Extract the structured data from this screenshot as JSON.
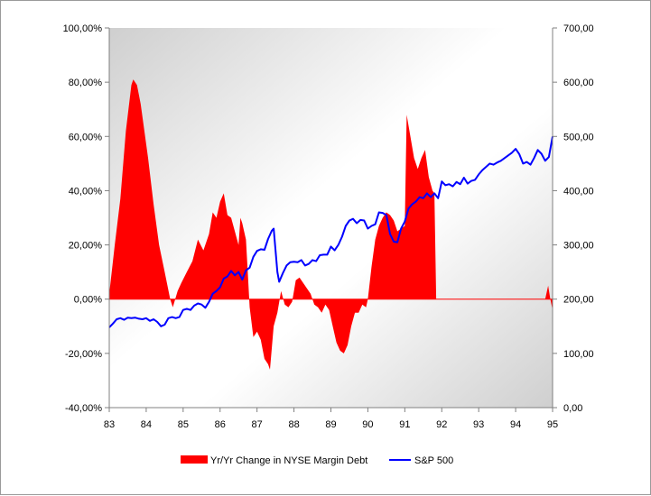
{
  "chart_data": {
    "type": "area+line",
    "title": "",
    "x_axis": {
      "labels": [
        "83",
        "84",
        "85",
        "86",
        "87",
        "88",
        "89",
        "90",
        "91",
        "92",
        "93",
        "94",
        "95"
      ],
      "range": [
        83,
        95
      ]
    },
    "y_left": {
      "range": [
        -40,
        100
      ],
      "ticks": [
        -40,
        -20,
        0,
        20,
        40,
        60,
        80,
        100
      ],
      "tick_labels": [
        "-40,00%",
        "-20,00%",
        "0,00%",
        "20,00%",
        "40,00%",
        "60,00%",
        "80,00%",
        "100,00%"
      ]
    },
    "y_right": {
      "range": [
        0,
        700
      ],
      "ticks": [
        0,
        100,
        200,
        300,
        400,
        500,
        600,
        700
      ],
      "tick_labels": [
        "0,00",
        "100,00",
        "200,00",
        "300,00",
        "400,00",
        "500,00",
        "600,00",
        "700,00"
      ]
    },
    "legend": {
      "position": "bottom"
    },
    "series": [
      {
        "name": "Yr/Yr Change in NYSE Margin Debt",
        "type": "area",
        "axis": "left",
        "color": "#ff0000",
        "points": [
          [
            83.0,
            2
          ],
          [
            83.15,
            20
          ],
          [
            83.3,
            37
          ],
          [
            83.45,
            62
          ],
          [
            83.6,
            79
          ],
          [
            83.65,
            81
          ],
          [
            83.75,
            79
          ],
          [
            83.85,
            72
          ],
          [
            83.95,
            62
          ],
          [
            84.05,
            52
          ],
          [
            84.2,
            35
          ],
          [
            84.35,
            20
          ],
          [
            84.5,
            10
          ],
          [
            84.65,
            0
          ],
          [
            84.72,
            -3
          ],
          [
            84.85,
            3
          ],
          [
            84.95,
            6
          ],
          [
            85.1,
            10
          ],
          [
            85.25,
            14
          ],
          [
            85.4,
            22
          ],
          [
            85.55,
            18
          ],
          [
            85.7,
            24
          ],
          [
            85.8,
            32
          ],
          [
            85.9,
            30
          ],
          [
            86.0,
            36
          ],
          [
            86.1,
            39
          ],
          [
            86.2,
            31
          ],
          [
            86.3,
            30
          ],
          [
            86.4,
            25
          ],
          [
            86.5,
            20
          ],
          [
            86.55,
            30
          ],
          [
            86.6,
            28
          ],
          [
            86.7,
            22
          ],
          [
            86.75,
            10
          ],
          [
            86.8,
            -3
          ],
          [
            86.9,
            -14
          ],
          [
            87.0,
            -12
          ],
          [
            87.1,
            -15
          ],
          [
            87.2,
            -22
          ],
          [
            87.3,
            -24
          ],
          [
            87.35,
            -26
          ],
          [
            87.45,
            -10
          ],
          [
            87.55,
            -5
          ],
          [
            87.65,
            3
          ],
          [
            87.75,
            -2
          ],
          [
            87.85,
            -3
          ],
          [
            87.95,
            -1
          ],
          [
            88.05,
            7
          ],
          [
            88.15,
            8
          ],
          [
            88.25,
            6
          ],
          [
            88.35,
            4
          ],
          [
            88.45,
            2
          ],
          [
            88.55,
            -2
          ],
          [
            88.65,
            -3
          ],
          [
            88.75,
            -5
          ],
          [
            88.85,
            -2
          ],
          [
            88.95,
            -4
          ],
          [
            89.05,
            -10
          ],
          [
            89.15,
            -16
          ],
          [
            89.25,
            -19
          ],
          [
            89.35,
            -20
          ],
          [
            89.45,
            -17
          ],
          [
            89.55,
            -10
          ],
          [
            89.65,
            -5
          ],
          [
            89.75,
            -5
          ],
          [
            89.85,
            -2
          ],
          [
            89.95,
            -3
          ],
          [
            90.0,
            0
          ],
          [
            90.1,
            12
          ],
          [
            90.2,
            22
          ],
          [
            90.3,
            27
          ],
          [
            90.4,
            30
          ],
          [
            90.5,
            32
          ],
          [
            90.6,
            31
          ],
          [
            90.7,
            29
          ],
          [
            90.8,
            25
          ],
          [
            90.9,
            26
          ],
          [
            91.0,
            27
          ],
          [
            91.05,
            68
          ],
          [
            91.15,
            60
          ],
          [
            91.25,
            52
          ],
          [
            91.35,
            48
          ],
          [
            91.45,
            52
          ],
          [
            91.55,
            55
          ],
          [
            91.65,
            45
          ],
          [
            91.75,
            40
          ],
          [
            91.8,
            39
          ],
          [
            91.85,
            0
          ],
          [
            92.0,
            0
          ]
        ]
      },
      {
        "name": "S&P 500",
        "type": "line",
        "axis": "right",
        "color": "#0000ff",
        "points": [
          [
            83.0,
            148
          ],
          [
            83.1,
            155
          ],
          [
            83.2,
            163
          ],
          [
            83.3,
            165
          ],
          [
            83.4,
            162
          ],
          [
            83.5,
            166
          ],
          [
            83.6,
            165
          ],
          [
            83.7,
            166
          ],
          [
            83.8,
            164
          ],
          [
            83.9,
            163
          ],
          [
            84.0,
            165
          ],
          [
            84.1,
            160
          ],
          [
            84.2,
            163
          ],
          [
            84.3,
            158
          ],
          [
            84.4,
            150
          ],
          [
            84.5,
            153
          ],
          [
            84.6,
            165
          ],
          [
            84.7,
            167
          ],
          [
            84.8,
            165
          ],
          [
            84.9,
            167
          ],
          [
            85.0,
            180
          ],
          [
            85.1,
            182
          ],
          [
            85.2,
            180
          ],
          [
            85.3,
            188
          ],
          [
            85.4,
            192
          ],
          [
            85.5,
            190
          ],
          [
            85.6,
            184
          ],
          [
            85.7,
            195
          ],
          [
            85.8,
            210
          ],
          [
            85.9,
            215
          ],
          [
            86.0,
            222
          ],
          [
            86.1,
            238
          ],
          [
            86.2,
            242
          ],
          [
            86.3,
            252
          ],
          [
            86.4,
            244
          ],
          [
            86.5,
            250
          ],
          [
            86.6,
            236
          ],
          [
            86.7,
            253
          ],
          [
            86.8,
            258
          ],
          [
            86.9,
            278
          ],
          [
            87.0,
            289
          ],
          [
            87.1,
            292
          ],
          [
            87.2,
            291
          ],
          [
            87.3,
            311
          ],
          [
            87.4,
            326
          ],
          [
            87.45,
            330
          ],
          [
            87.55,
            250
          ],
          [
            87.6,
            232
          ],
          [
            87.7,
            248
          ],
          [
            87.8,
            262
          ],
          [
            87.9,
            268
          ],
          [
            88.0,
            269
          ],
          [
            88.1,
            268
          ],
          [
            88.2,
            272
          ],
          [
            88.3,
            262
          ],
          [
            88.4,
            265
          ],
          [
            88.5,
            272
          ],
          [
            88.6,
            270
          ],
          [
            88.7,
            281
          ],
          [
            88.8,
            282
          ],
          [
            88.9,
            282
          ],
          [
            89.0,
            297
          ],
          [
            89.1,
            290
          ],
          [
            89.2,
            300
          ],
          [
            89.3,
            315
          ],
          [
            89.4,
            335
          ],
          [
            89.5,
            345
          ],
          [
            89.6,
            348
          ],
          [
            89.7,
            340
          ],
          [
            89.8,
            346
          ],
          [
            89.9,
            345
          ],
          [
            90.0,
            330
          ],
          [
            90.1,
            335
          ],
          [
            90.2,
            338
          ],
          [
            90.3,
            360
          ],
          [
            90.4,
            359
          ],
          [
            90.5,
            355
          ],
          [
            90.6,
            320
          ],
          [
            90.7,
            306
          ],
          [
            90.8,
            305
          ],
          [
            90.9,
            330
          ],
          [
            91.0,
            343
          ],
          [
            91.1,
            367
          ],
          [
            91.2,
            375
          ],
          [
            91.3,
            380
          ],
          [
            91.4,
            388
          ],
          [
            91.5,
            386
          ],
          [
            91.6,
            395
          ],
          [
            91.7,
            388
          ],
          [
            91.8,
            395
          ],
          [
            91.9,
            386
          ],
          [
            92.0,
            417
          ],
          [
            92.1,
            410
          ],
          [
            92.2,
            412
          ],
          [
            92.3,
            408
          ],
          [
            92.4,
            416
          ],
          [
            92.5,
            412
          ],
          [
            92.6,
            424
          ],
          [
            92.7,
            413
          ],
          [
            92.8,
            418
          ],
          [
            92.9,
            420
          ],
          [
            93.0,
            430
          ],
          [
            93.1,
            438
          ],
          [
            93.2,
            444
          ],
          [
            93.3,
            450
          ],
          [
            93.4,
            448
          ],
          [
            93.5,
            452
          ],
          [
            93.6,
            455
          ],
          [
            93.7,
            460
          ],
          [
            93.8,
            465
          ],
          [
            93.9,
            470
          ],
          [
            94.0,
            477
          ],
          [
            94.1,
            467
          ],
          [
            94.2,
            450
          ],
          [
            94.3,
            453
          ],
          [
            94.4,
            448
          ],
          [
            94.5,
            460
          ],
          [
            94.6,
            475
          ],
          [
            94.7,
            468
          ],
          [
            94.8,
            455
          ],
          [
            94.9,
            462
          ],
          [
            95.0,
            500
          ]
        ]
      }
    ]
  }
}
